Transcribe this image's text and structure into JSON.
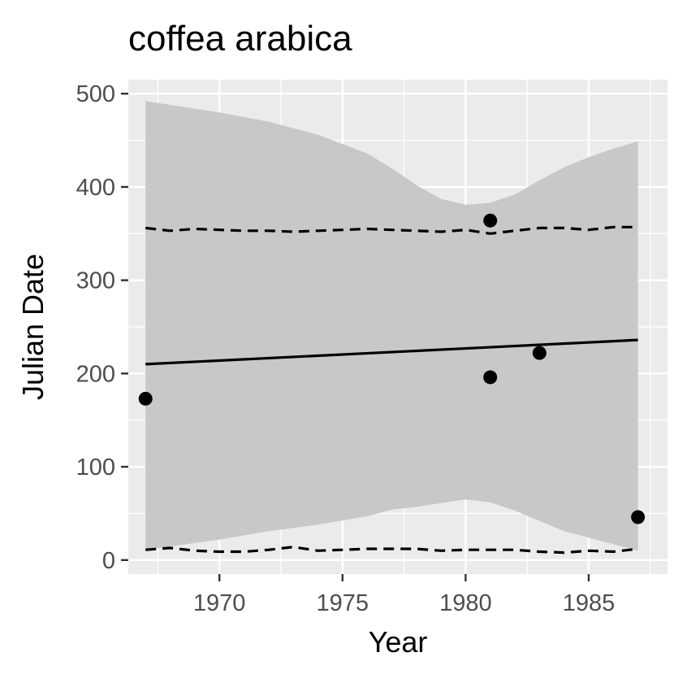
{
  "chart_data": {
    "type": "scatter",
    "title": "coffea arabica",
    "xlabel": "Year",
    "ylabel": "Julian Date",
    "xlim": [
      1966.3,
      1988.2
    ],
    "ylim": [
      -15,
      515
    ],
    "x_ticks": [
      1970,
      1975,
      1980,
      1985
    ],
    "y_ticks": [
      0,
      100,
      200,
      300,
      400,
      500
    ],
    "grid": true,
    "background": "#ebebeb",
    "grid_color": "#ffffff",
    "ribbon_color": "#c8c8c8",
    "points": [
      {
        "x": 1967,
        "y": 173
      },
      {
        "x": 1981,
        "y": 364
      },
      {
        "x": 1981,
        "y": 196
      },
      {
        "x": 1983,
        "y": 222
      },
      {
        "x": 1987,
        "y": 46
      }
    ],
    "fit_line": [
      {
        "x": 1967,
        "y": 210
      },
      {
        "x": 1987,
        "y": 236
      }
    ],
    "ribbon": {
      "x": [
        1967,
        1970,
        1972,
        1974,
        1976,
        1977,
        1978,
        1979,
        1980,
        1981,
        1982,
        1983,
        1984,
        1985,
        1986,
        1987
      ],
      "upper": [
        492,
        480,
        470,
        456,
        436,
        420,
        402,
        387,
        381,
        383,
        392,
        407,
        421,
        432,
        441,
        449
      ],
      "lower": [
        11,
        22,
        31,
        38,
        47,
        54,
        57,
        61,
        65,
        62,
        53,
        42,
        31,
        24,
        17,
        10
      ]
    },
    "dashed_upper": {
      "x": [
        1967,
        1968,
        1969,
        1970,
        1971,
        1972,
        1973,
        1974,
        1975,
        1976,
        1977,
        1978,
        1979,
        1980,
        1981,
        1982,
        1983,
        1984,
        1985,
        1986,
        1987
      ],
      "y": [
        356,
        353,
        355,
        354,
        353,
        353,
        352,
        353,
        354,
        355,
        354,
        353,
        352,
        354,
        350,
        353,
        356,
        356,
        354,
        357,
        357
      ]
    },
    "dashed_lower": {
      "x": [
        1967,
        1968,
        1969,
        1970,
        1971,
        1972,
        1973,
        1974,
        1975,
        1976,
        1977,
        1978,
        1979,
        1980,
        1981,
        1982,
        1983,
        1984,
        1985,
        1986,
        1987
      ],
      "y": [
        11,
        13,
        10,
        9,
        9,
        11,
        14,
        10,
        11,
        12,
        12,
        12,
        10,
        11,
        11,
        11,
        9,
        8,
        10,
        9,
        12
      ]
    }
  }
}
